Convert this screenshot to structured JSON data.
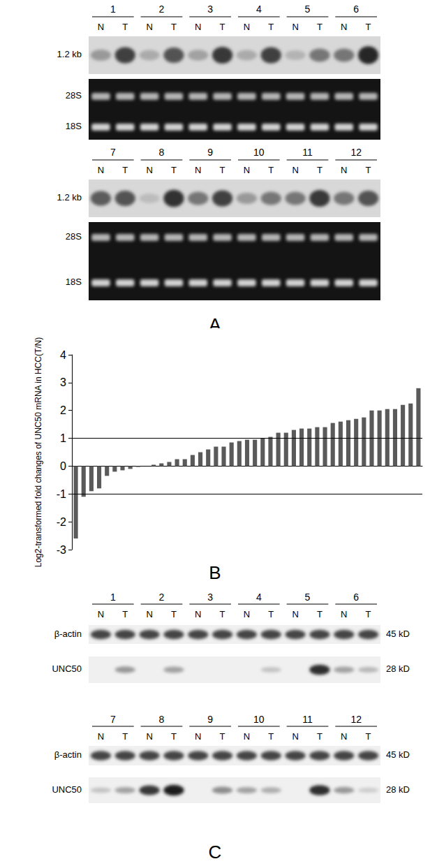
{
  "panel_a": {
    "label": "A",
    "lanes": [
      "N",
      "T"
    ],
    "band_label": "1.2 kb",
    "gel_labels": [
      "28S",
      "18S"
    ],
    "rows": [
      {
        "groups": [
          "1",
          "2",
          "3",
          "4",
          "5",
          "6"
        ],
        "band_intensity": [
          [
            0.3,
            0.8
          ],
          [
            0.2,
            0.7
          ],
          [
            0.25,
            0.85
          ],
          [
            0.2,
            0.8
          ],
          [
            0.15,
            0.5
          ],
          [
            0.5,
            0.95
          ]
        ]
      },
      {
        "groups": [
          "7",
          "8",
          "9",
          "10",
          "11",
          "12"
        ],
        "band_intensity": [
          [
            0.65,
            0.7
          ],
          [
            0.1,
            0.9
          ],
          [
            0.5,
            0.8
          ],
          [
            0.3,
            0.5
          ],
          [
            0.5,
            0.85
          ],
          [
            0.5,
            0.7
          ]
        ]
      }
    ]
  },
  "chart_data": {
    "type": "bar",
    "title": "B",
    "y_label": "Log2-transformed fold changes of UNC50 mRNA in HCC(T/N)",
    "categories": [
      null,
      null,
      null,
      null,
      null,
      null,
      null,
      null,
      null,
      null,
      null,
      null,
      null,
      null,
      null,
      null,
      null,
      null,
      null,
      null,
      null,
      null,
      null,
      null,
      null,
      null,
      null,
      null,
      null,
      null,
      null,
      null,
      null,
      null,
      null,
      null,
      null,
      null,
      null,
      null,
      null,
      null,
      null,
      null,
      null
    ],
    "values": [
      -2.6,
      -1.1,
      -0.9,
      -0.8,
      -0.35,
      -0.2,
      -0.15,
      -0.1,
      -0.03,
      0.0,
      0.05,
      0.1,
      0.15,
      0.25,
      0.25,
      0.4,
      0.5,
      0.6,
      0.7,
      0.7,
      0.85,
      0.9,
      0.95,
      0.95,
      1.0,
      1.05,
      1.2,
      1.2,
      1.3,
      1.35,
      1.35,
      1.4,
      1.4,
      1.55,
      1.6,
      1.65,
      1.7,
      1.75,
      2.0,
      2.0,
      2.05,
      2.05,
      2.2,
      2.25,
      2.8
    ],
    "color": "#5a5a5a",
    "ylim": [
      -3,
      4
    ],
    "yticks": [
      -3,
      -2,
      -1,
      0,
      1,
      2,
      3,
      4
    ],
    "reference_lines": [
      1,
      -1
    ],
    "grid": false,
    "tick_labels": "y"
  },
  "panel_c": {
    "label": "C",
    "lanes": [
      "N",
      "T"
    ],
    "markers": [
      {
        "name": "β-actin",
        "size": "45 kD"
      },
      {
        "name": "UNC50",
        "size": "28 kD"
      }
    ],
    "rows": [
      {
        "groups": [
          "1",
          "2",
          "3",
          "4",
          "5",
          "6"
        ],
        "intensity": [
          [
            [
              0.75,
              0.75
            ],
            [
              0.75,
              0.75
            ],
            [
              0.75,
              0.75
            ],
            [
              0.75,
              0.75
            ],
            [
              0.75,
              0.75
            ],
            [
              0.75,
              0.75
            ]
          ],
          [
            [
              0.0,
              0.35
            ],
            [
              0.0,
              0.3
            ],
            [
              0.0,
              0.0
            ],
            [
              0.0,
              0.15
            ],
            [
              0.0,
              0.85
            ],
            [
              0.3,
              0.2
            ]
          ]
        ]
      },
      {
        "groups": [
          "7",
          "8",
          "9",
          "10",
          "11",
          "12"
        ],
        "intensity": [
          [
            [
              0.75,
              0.75
            ],
            [
              0.75,
              0.75
            ],
            [
              0.75,
              0.75
            ],
            [
              0.75,
              0.75
            ],
            [
              0.75,
              0.75
            ],
            [
              0.75,
              0.75
            ]
          ],
          [
            [
              0.15,
              0.3
            ],
            [
              0.8,
              0.95
            ],
            [
              0.0,
              0.4
            ],
            [
              0.3,
              0.25
            ],
            [
              0.0,
              0.85
            ],
            [
              0.35,
              0.1
            ]
          ]
        ]
      }
    ]
  }
}
